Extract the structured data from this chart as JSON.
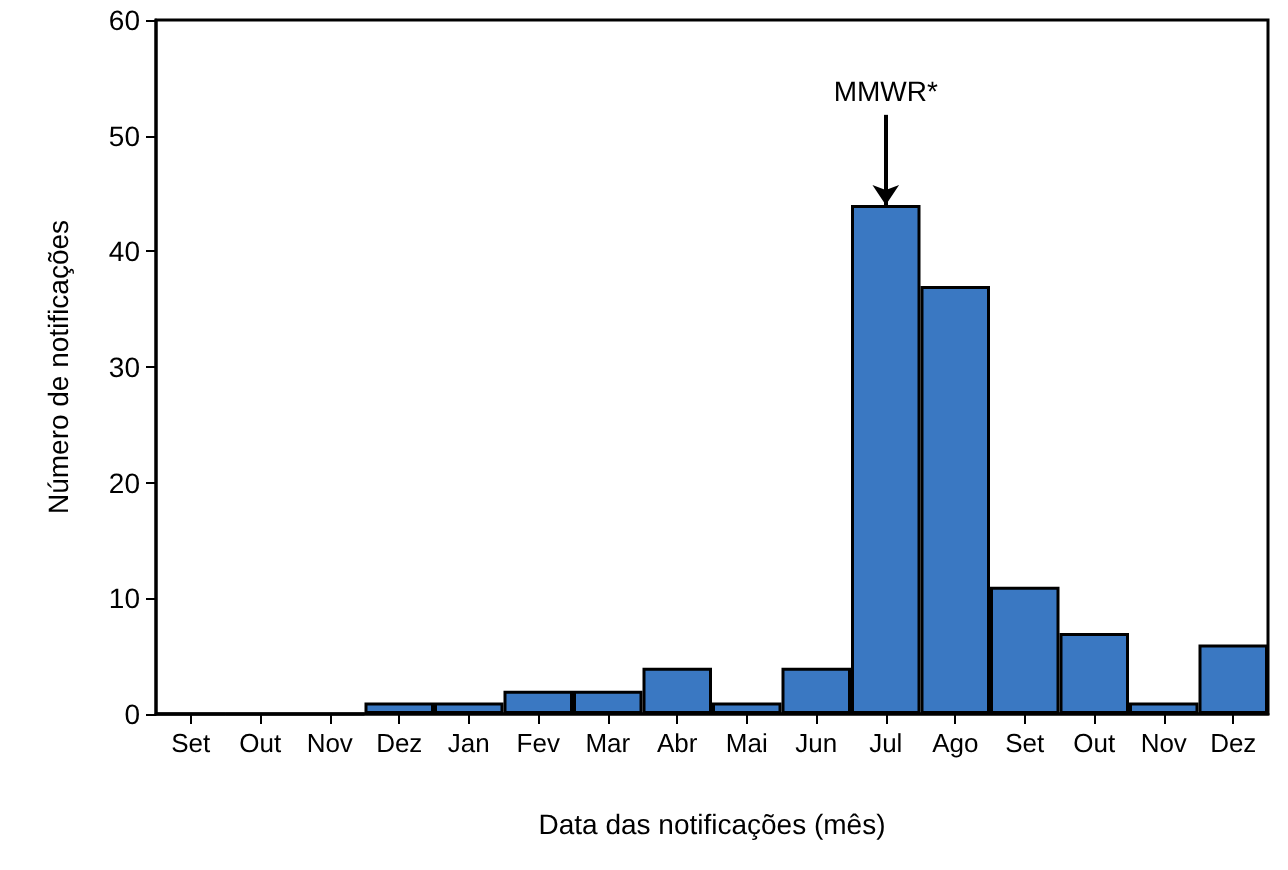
{
  "chart_data": {
    "type": "bar",
    "xlabel": "Data das notificações (mês)",
    "ylabel": "Número de notificações",
    "categories": [
      "Set",
      "Out",
      "Nov",
      "Dez",
      "Jan",
      "Fev",
      "Mar",
      "Abr",
      "Mai",
      "Jun",
      "Jul",
      "Ago",
      "Set",
      "Out",
      "Nov",
      "Dez"
    ],
    "values": [
      0,
      0,
      0,
      1,
      1,
      2,
      2,
      4,
      1,
      4,
      44,
      37,
      11,
      7,
      1,
      6
    ],
    "color": "#3a78c2",
    "ylim": [
      0,
      60
    ],
    "yticks": [
      0,
      10,
      20,
      30,
      40,
      50,
      60
    ],
    "annotations": [
      {
        "text": "MMWR*",
        "x": "Jul",
        "y": 44
      }
    ]
  }
}
